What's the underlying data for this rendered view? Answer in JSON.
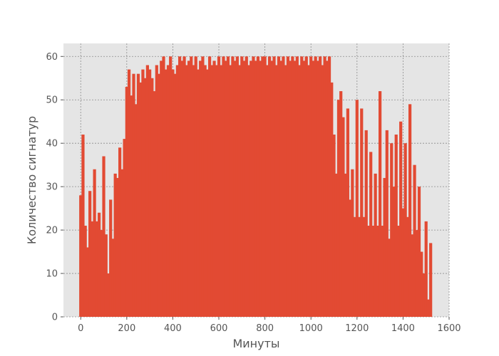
{
  "chart_data": {
    "type": "bar",
    "title": "",
    "xlabel": "Минуты",
    "ylabel": "Количество сигнатур",
    "xlim": [
      -75,
      1600
    ],
    "ylim": [
      0,
      63
    ],
    "xticks": [
      0,
      200,
      400,
      600,
      800,
      1000,
      1200,
      1400,
      1600
    ],
    "yticks": [
      0,
      10,
      20,
      30,
      40,
      50,
      60
    ],
    "grid": true,
    "legend": "none",
    "style": {
      "background": "#e5e5e5",
      "bar_color": "#e24a33",
      "grid_color": "#8c8c8c",
      "text_color": "#555555"
    },
    "series": [
      {
        "x": [
          0,
          10,
          20,
          30,
          40,
          50,
          60,
          70,
          80,
          90,
          100,
          110,
          120,
          130,
          140,
          150,
          160,
          170,
          180,
          190,
          200,
          210,
          220,
          230,
          240,
          250,
          260,
          270,
          280,
          290,
          300,
          310,
          320,
          330,
          340,
          350,
          360,
          370,
          380,
          390,
          400,
          410,
          420,
          430,
          440,
          450,
          460,
          470,
          480,
          490,
          500,
          510,
          520,
          530,
          540,
          550,
          560,
          570,
          580,
          590,
          600,
          610,
          620,
          630,
          640,
          650,
          660,
          670,
          680,
          690,
          700,
          710,
          720,
          730,
          740,
          750,
          760,
          770,
          780,
          790,
          800,
          810,
          820,
          830,
          840,
          850,
          860,
          870,
          880,
          890,
          900,
          910,
          920,
          930,
          940,
          950,
          960,
          970,
          980,
          990,
          1000,
          1010,
          1020,
          1030,
          1040,
          1050,
          1060,
          1070,
          1080,
          1090,
          1100,
          1110,
          1120,
          1130,
          1140,
          1150,
          1160,
          1170,
          1180,
          1190,
          1200,
          1210,
          1220,
          1230,
          1240,
          1250,
          1260,
          1270,
          1280,
          1290,
          1300,
          1310,
          1320,
          1330,
          1340,
          1350,
          1360,
          1370,
          1380,
          1390,
          1400,
          1410,
          1420,
          1430,
          1440,
          1450,
          1460,
          1470,
          1480,
          1490,
          1500,
          1510,
          1520
        ],
        "values": [
          28,
          42,
          21,
          16,
          29,
          22,
          34,
          22,
          24,
          20,
          37,
          19,
          10,
          27,
          18,
          33,
          32,
          39,
          34,
          41,
          53,
          57,
          51,
          56,
          49,
          56,
          54,
          57,
          55,
          58,
          57,
          55,
          52,
          58,
          56,
          59,
          60,
          57,
          58,
          60,
          57,
          56,
          58,
          60,
          59,
          60,
          58,
          59,
          60,
          58,
          60,
          57,
          59,
          60,
          58,
          57,
          60,
          58,
          59,
          58,
          60,
          58,
          60,
          59,
          60,
          58,
          60,
          59,
          60,
          58,
          60,
          59,
          60,
          58,
          59,
          60,
          59,
          60,
          59,
          60,
          60,
          58,
          60,
          59,
          60,
          58,
          60,
          59,
          60,
          58,
          60,
          59,
          60,
          59,
          60,
          58,
          60,
          59,
          60,
          58,
          60,
          59,
          60,
          59,
          60,
          58,
          60,
          59,
          60,
          54,
          42,
          33,
          50,
          52,
          46,
          33,
          48,
          27,
          34,
          23,
          50,
          23,
          48,
          23,
          43,
          21,
          38,
          21,
          33,
          21,
          52,
          21,
          32,
          43,
          18,
          40,
          30,
          42,
          21,
          45,
          25,
          40,
          23,
          49,
          19,
          35,
          20,
          30,
          15,
          10,
          22,
          4,
          17
        ]
      }
    ]
  }
}
